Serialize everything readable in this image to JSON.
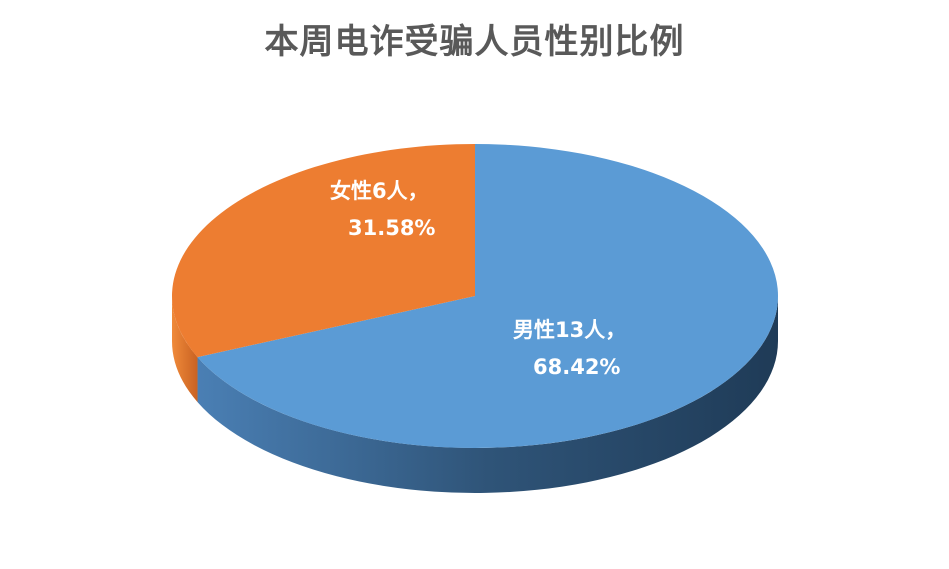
{
  "chart_data": {
    "type": "pie",
    "style": "3d",
    "title": "本周电诈受骗人员性别比例",
    "slices": [
      {
        "name": "男性",
        "count": 13,
        "percent": 68.42,
        "label_line1": "男性13人，",
        "label_line2": "68.42%",
        "color": "#5B9BD5"
      },
      {
        "name": "女性",
        "count": 6,
        "percent": 31.58,
        "label_line1": "女性6人，",
        "label_line2": "31.58%",
        "color": "#ED7D31"
      }
    ]
  }
}
